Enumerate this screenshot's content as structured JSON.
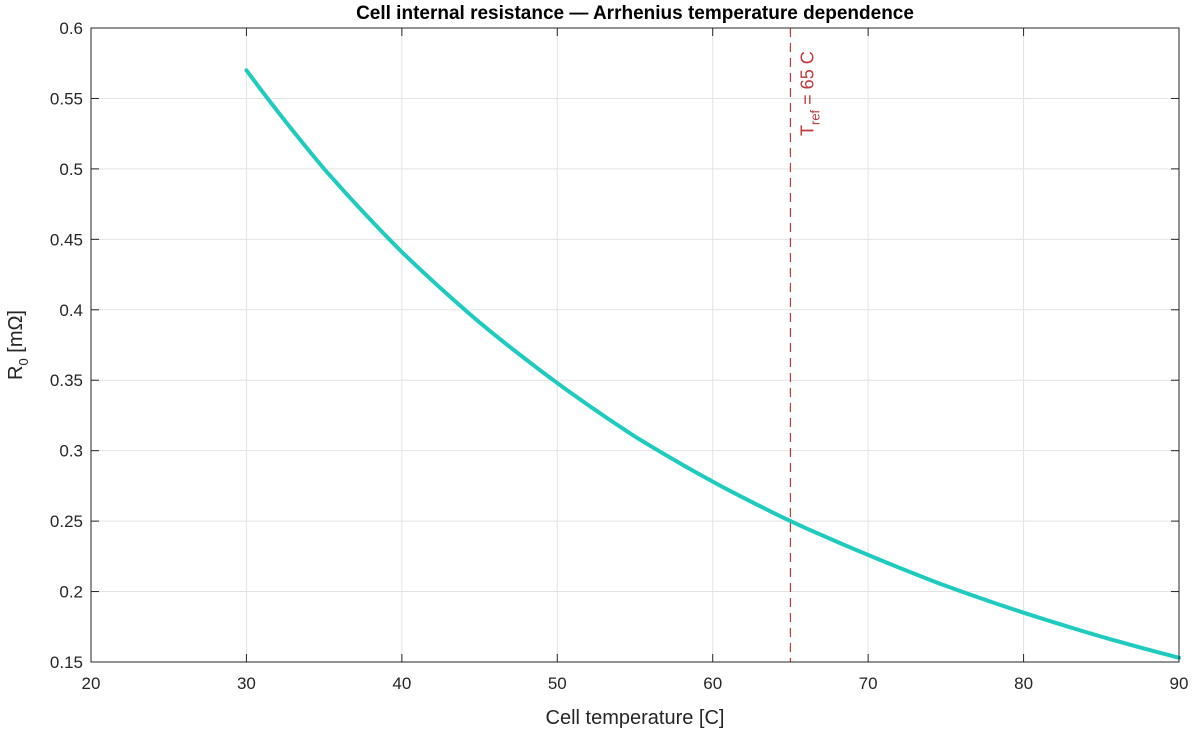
{
  "chart_data": {
    "type": "line",
    "title": "Cell internal resistance — Arrhenius temperature dependence",
    "xlabel": "Cell temperature [C]",
    "ylabel": {
      "main": "R",
      "subscript": "0",
      "rest": " [mΩ]"
    },
    "xlim": [
      20,
      90
    ],
    "ylim": [
      0.15,
      0.6
    ],
    "xticks": [
      20,
      30,
      40,
      50,
      60,
      70,
      80,
      90
    ],
    "yticks": [
      0.15,
      0.2,
      0.25,
      0.3,
      0.35,
      0.4,
      0.45,
      0.5,
      0.55,
      0.6
    ],
    "xtick_labels": [
      "20",
      "30",
      "40",
      "50",
      "60",
      "70",
      "80",
      "90"
    ],
    "ytick_labels": [
      "0.15",
      "0.2",
      "0.25",
      "0.3",
      "0.35",
      "0.4",
      "0.45",
      "0.5",
      "0.55",
      "0.6"
    ],
    "grid": true,
    "series": [
      {
        "color": "#1ecbbe",
        "x": [
          30,
          35,
          40,
          45,
          50,
          55,
          60,
          65,
          70,
          75,
          80,
          85,
          90
        ],
        "y": [
          0.57,
          0.5,
          0.441,
          0.391,
          0.348,
          0.31,
          0.278,
          0.25,
          0.226,
          0.204,
          0.185,
          0.168,
          0.153
        ]
      }
    ],
    "annotations": [
      {
        "type": "vline",
        "x": 65,
        "style": "dashed",
        "color": "#c0393b",
        "label": {
          "main": "T",
          "subscript": "ref",
          "rest": " = 65 C"
        }
      }
    ]
  }
}
